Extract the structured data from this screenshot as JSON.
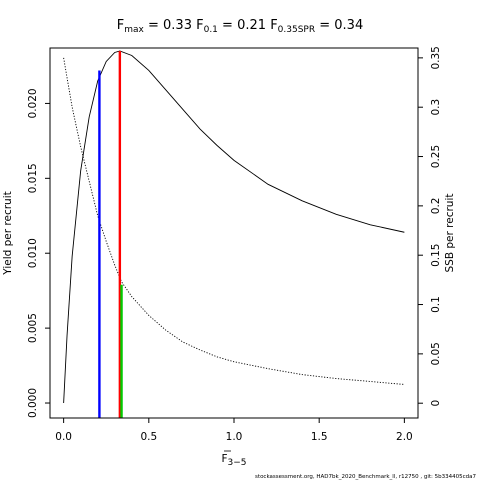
{
  "chart_data": {
    "type": "line",
    "title": {
      "fmax": {
        "label": "F",
        "sub": "max",
        "value": "0.33"
      },
      "f01": {
        "label": "F",
        "sub": "0.1",
        "value": "0.21"
      },
      "fspr": {
        "label": "F",
        "sub": "0.35SPR",
        "value": "0.34"
      }
    },
    "xlabel": {
      "main": "F",
      "sub": "3−5"
    },
    "ylabel_left": "Yield per recruit",
    "ylabel_right": "SSB per recruit",
    "xlim": [
      -0.08,
      2.08
    ],
    "ylim_left": [
      -0.001,
      0.0237
    ],
    "ylim_right": [
      -0.015,
      0.36
    ],
    "x_ticks": [
      0,
      0.5,
      1.0,
      1.5,
      2.0
    ],
    "x_tick_labels": [
      "0.0",
      "0.5",
      "1.0",
      "1.5",
      "2.0"
    ],
    "y_left_ticks": [
      0,
      0.005,
      0.01,
      0.015,
      0.02
    ],
    "y_left_tick_labels": [
      "0.000",
      "0.005",
      "0.010",
      "0.015",
      "0.020"
    ],
    "y_right_ticks": [
      0,
      0.05,
      0.1,
      0.15,
      0.2,
      0.25,
      0.3,
      0.35
    ],
    "y_right_tick_labels": [
      "0",
      "0.05",
      "0.1",
      "0.15",
      "0.2",
      "0.25",
      "0.3",
      "0.35"
    ],
    "series": [
      {
        "axis": "left",
        "style": "solid",
        "color": "#000000",
        "x": [
          0,
          0.02,
          0.05,
          0.1,
          0.15,
          0.2,
          0.25,
          0.3,
          0.33,
          0.4,
          0.5,
          0.6,
          0.7,
          0.8,
          0.9,
          1.0,
          1.2,
          1.4,
          1.6,
          1.8,
          2.0
        ],
        "y": [
          0,
          0.0045,
          0.0098,
          0.0155,
          0.0191,
          0.0215,
          0.0228,
          0.0234,
          0.0235,
          0.0232,
          0.0222,
          0.0209,
          0.0196,
          0.0183,
          0.0172,
          0.0162,
          0.0146,
          0.0135,
          0.0126,
          0.0119,
          0.0114
        ]
      },
      {
        "axis": "right",
        "style": "dotted",
        "color": "#000000",
        "x": [
          0,
          0.05,
          0.1,
          0.15,
          0.2,
          0.25,
          0.3,
          0.34,
          0.4,
          0.5,
          0.6,
          0.7,
          0.8,
          0.9,
          1.0,
          1.2,
          1.4,
          1.6,
          1.8,
          2.0
        ],
        "y": [
          0.35,
          0.3,
          0.26,
          0.225,
          0.19,
          0.164,
          0.14,
          0.123,
          0.108,
          0.089,
          0.074,
          0.062,
          0.054,
          0.047,
          0.042,
          0.035,
          0.029,
          0.025,
          0.022,
          0.019
        ]
      }
    ],
    "reference_lines": [
      {
        "name": "F0.1",
        "x": 0.21,
        "axis": "left",
        "y": 0.0222,
        "color": "#0000ff"
      },
      {
        "name": "Fmax",
        "x": 0.33,
        "axis": "left",
        "y": 0.0235,
        "color": "#ff0000"
      },
      {
        "name": "F0.35SPR",
        "x": 0.34,
        "axis": "right",
        "y": 0.12,
        "color": "#00cc00"
      }
    ]
  },
  "footer": "stockassessment.org, HAD7bk_2020_Benchmark_ll, r12750 , git: 5b334405cda7"
}
